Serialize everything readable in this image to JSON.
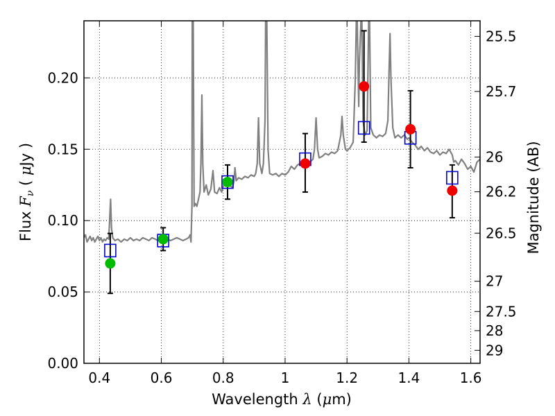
{
  "chart_data": {
    "type": "scatter",
    "xlabel": "Wavelength  λ (μm)",
    "xlabel_parts": {
      "prefix": "Wavelength  ",
      "symbol": "λ",
      "suffix": " (",
      "mu": "μ",
      "unit": "m)"
    },
    "ylabel": "Flux  Fν  ( μJy )",
    "ylabel_parts": {
      "prefix": "Flux  ",
      "symbol": "F",
      "sub": "ν",
      "open": "  ( ",
      "mu": "μ",
      "unit": "Jy )"
    },
    "y2label": "Magnitude (AB)",
    "xlim": [
      0.35,
      1.63
    ],
    "ylim": [
      0.0,
      0.24
    ],
    "grid": true,
    "x_ticks": [
      {
        "value": 0.4,
        "label": "0.4"
      },
      {
        "value": 0.6,
        "label": "0.6"
      },
      {
        "value": 0.8,
        "label": "0.8"
      },
      {
        "value": 1.0,
        "label": "1"
      },
      {
        "value": 1.2,
        "label": "1.2"
      },
      {
        "value": 1.4,
        "label": "1.4"
      },
      {
        "value": 1.6,
        "label": "1.6"
      }
    ],
    "y_ticks": [
      {
        "value": 0.0,
        "label": "0.00"
      },
      {
        "value": 0.05,
        "label": "0.05"
      },
      {
        "value": 0.1,
        "label": "0.10"
      },
      {
        "value": 0.15,
        "label": "0.15"
      },
      {
        "value": 0.2,
        "label": "0.20"
      }
    ],
    "y2_ticks": [
      {
        "label": "25.5",
        "flux": 0.2291
      },
      {
        "label": "25.7",
        "flux": 0.1905
      },
      {
        "label": "26",
        "flux": 0.1445
      },
      {
        "label": "26.2",
        "flux": 0.1202
      },
      {
        "label": "26.5",
        "flux": 0.0912
      },
      {
        "label": "27",
        "flux": 0.0575
      },
      {
        "label": "27.5",
        "flux": 0.0363
      },
      {
        "label": "28",
        "flux": 0.0229
      },
      {
        "label": "29",
        "flux": 0.0091
      }
    ],
    "colors": {
      "sed": "#808080",
      "model": "#0000cc",
      "green": "#00bb00",
      "red": "#ee0000",
      "errorbar": "#000000"
    },
    "series": [
      {
        "kind": "model_photometry",
        "marker": "open-square",
        "x": [
          0.435,
          0.606,
          0.814,
          1.065,
          1.255,
          1.405,
          1.54
        ],
        "y": [
          0.079,
          0.086,
          0.127,
          0.143,
          0.165,
          0.158,
          0.13
        ]
      },
      {
        "kind": "observed_optical",
        "marker": "filled-circle",
        "color_key": "green",
        "x": [
          0.435,
          0.606,
          0.814
        ],
        "y": [
          0.07,
          0.087,
          0.127
        ],
        "yerr_low": [
          0.049,
          0.079,
          0.115
        ],
        "yerr_high": [
          0.091,
          0.095,
          0.139
        ]
      },
      {
        "kind": "observed_nir",
        "marker": "filled-circle",
        "color_key": "red",
        "x": [
          1.065,
          1.255,
          1.405,
          1.54
        ],
        "y": [
          0.14,
          0.194,
          0.164,
          0.121
        ],
        "yerr_low": [
          0.12,
          0.155,
          0.137,
          0.102
        ],
        "yerr_high": [
          0.161,
          0.233,
          0.191,
          0.139
        ]
      }
    ],
    "sed_curve": [
      [
        0.35,
        0.088
      ],
      [
        0.355,
        0.09
      ],
      [
        0.36,
        0.085
      ],
      [
        0.365,
        0.087
      ],
      [
        0.37,
        0.089
      ],
      [
        0.375,
        0.086
      ],
      [
        0.38,
        0.088
      ],
      [
        0.385,
        0.085
      ],
      [
        0.39,
        0.087
      ],
      [
        0.395,
        0.089
      ],
      [
        0.4,
        0.086
      ],
      [
        0.405,
        0.088
      ],
      [
        0.41,
        0.085
      ],
      [
        0.415,
        0.087
      ],
      [
        0.42,
        0.086
      ],
      [
        0.425,
        0.088
      ],
      [
        0.43,
        0.087
      ],
      [
        0.433,
        0.1
      ],
      [
        0.436,
        0.115
      ],
      [
        0.439,
        0.095
      ],
      [
        0.443,
        0.088
      ],
      [
        0.45,
        0.086
      ],
      [
        0.46,
        0.087
      ],
      [
        0.47,
        0.085
      ],
      [
        0.48,
        0.087
      ],
      [
        0.49,
        0.086
      ],
      [
        0.5,
        0.088
      ],
      [
        0.51,
        0.086
      ],
      [
        0.52,
        0.087
      ],
      [
        0.53,
        0.086
      ],
      [
        0.54,
        0.088
      ],
      [
        0.55,
        0.087
      ],
      [
        0.56,
        0.086
      ],
      [
        0.57,
        0.088
      ],
      [
        0.58,
        0.087
      ],
      [
        0.59,
        0.086
      ],
      [
        0.6,
        0.087
      ],
      [
        0.61,
        0.088
      ],
      [
        0.62,
        0.087
      ],
      [
        0.63,
        0.086
      ],
      [
        0.64,
        0.087
      ],
      [
        0.65,
        0.088
      ],
      [
        0.66,
        0.087
      ],
      [
        0.67,
        0.086
      ],
      [
        0.68,
        0.087
      ],
      [
        0.688,
        0.088
      ],
      [
        0.693,
        0.09
      ],
      [
        0.696,
        0.085
      ],
      [
        0.699,
        0.11
      ],
      [
        0.7,
        0.24
      ],
      [
        0.703,
        0.24
      ],
      [
        0.706,
        0.11
      ],
      [
        0.71,
        0.112
      ],
      [
        0.715,
        0.11
      ],
      [
        0.72,
        0.115
      ],
      [
        0.725,
        0.12
      ],
      [
        0.728,
        0.14
      ],
      [
        0.731,
        0.188
      ],
      [
        0.734,
        0.14
      ],
      [
        0.738,
        0.12
      ],
      [
        0.745,
        0.125
      ],
      [
        0.752,
        0.118
      ],
      [
        0.76,
        0.122
      ],
      [
        0.767,
        0.135
      ],
      [
        0.772,
        0.12
      ],
      [
        0.78,
        0.119
      ],
      [
        0.788,
        0.123
      ],
      [
        0.795,
        0.12
      ],
      [
        0.8,
        0.124
      ],
      [
        0.81,
        0.126
      ],
      [
        0.82,
        0.125
      ],
      [
        0.83,
        0.123
      ],
      [
        0.835,
        0.128
      ],
      [
        0.838,
        0.137
      ],
      [
        0.842,
        0.128
      ],
      [
        0.85,
        0.13
      ],
      [
        0.86,
        0.129
      ],
      [
        0.87,
        0.131
      ],
      [
        0.88,
        0.13
      ],
      [
        0.89,
        0.132
      ],
      [
        0.9,
        0.131
      ],
      [
        0.905,
        0.133
      ],
      [
        0.91,
        0.14
      ],
      [
        0.914,
        0.172
      ],
      [
        0.918,
        0.14
      ],
      [
        0.925,
        0.133
      ],
      [
        0.93,
        0.14
      ],
      [
        0.935,
        0.17
      ],
      [
        0.937,
        0.24
      ],
      [
        0.941,
        0.24
      ],
      [
        0.945,
        0.15
      ],
      [
        0.95,
        0.133
      ],
      [
        0.96,
        0.132
      ],
      [
        0.97,
        0.133
      ],
      [
        0.98,
        0.131
      ],
      [
        0.99,
        0.133
      ],
      [
        1.0,
        0.132
      ],
      [
        1.01,
        0.134
      ],
      [
        1.02,
        0.138
      ],
      [
        1.03,
        0.136
      ],
      [
        1.04,
        0.139
      ],
      [
        1.05,
        0.14
      ],
      [
        1.06,
        0.141
      ],
      [
        1.07,
        0.142
      ],
      [
        1.08,
        0.141
      ],
      [
        1.09,
        0.143
      ],
      [
        1.095,
        0.15
      ],
      [
        1.1,
        0.172
      ],
      [
        1.105,
        0.15
      ],
      [
        1.11,
        0.144
      ],
      [
        1.12,
        0.145
      ],
      [
        1.13,
        0.147
      ],
      [
        1.14,
        0.146
      ],
      [
        1.15,
        0.148
      ],
      [
        1.16,
        0.147
      ],
      [
        1.17,
        0.149
      ],
      [
        1.18,
        0.16
      ],
      [
        1.184,
        0.173
      ],
      [
        1.188,
        0.16
      ],
      [
        1.195,
        0.15
      ],
      [
        1.2,
        0.149
      ],
      [
        1.21,
        0.151
      ],
      [
        1.22,
        0.155
      ],
      [
        1.227,
        0.2
      ],
      [
        1.23,
        0.24
      ],
      [
        1.233,
        0.24
      ],
      [
        1.238,
        0.18
      ],
      [
        1.24,
        0.21
      ],
      [
        1.245,
        0.24
      ],
      [
        1.248,
        0.24
      ],
      [
        1.252,
        0.17
      ],
      [
        1.258,
        0.16
      ],
      [
        1.265,
        0.163
      ],
      [
        1.27,
        0.24
      ],
      [
        1.273,
        0.24
      ],
      [
        1.277,
        0.165
      ],
      [
        1.285,
        0.16
      ],
      [
        1.295,
        0.158
      ],
      [
        1.305,
        0.16
      ],
      [
        1.315,
        0.159
      ],
      [
        1.325,
        0.161
      ],
      [
        1.332,
        0.17
      ],
      [
        1.336,
        0.205
      ],
      [
        1.339,
        0.231
      ],
      [
        1.342,
        0.2
      ],
      [
        1.348,
        0.165
      ],
      [
        1.355,
        0.158
      ],
      [
        1.365,
        0.16
      ],
      [
        1.375,
        0.158
      ],
      [
        1.385,
        0.16
      ],
      [
        1.395,
        0.157
      ],
      [
        1.4,
        0.158
      ],
      [
        1.41,
        0.155
      ],
      [
        1.42,
        0.153
      ],
      [
        1.43,
        0.15
      ],
      [
        1.44,
        0.152
      ],
      [
        1.45,
        0.149
      ],
      [
        1.46,
        0.151
      ],
      [
        1.47,
        0.148
      ],
      [
        1.48,
        0.147
      ],
      [
        1.49,
        0.149
      ],
      [
        1.5,
        0.146
      ],
      [
        1.51,
        0.148
      ],
      [
        1.52,
        0.147
      ],
      [
        1.53,
        0.15
      ],
      [
        1.54,
        0.146
      ],
      [
        1.545,
        0.141
      ],
      [
        1.55,
        0.142
      ],
      [
        1.56,
        0.139
      ],
      [
        1.57,
        0.143
      ],
      [
        1.58,
        0.14
      ],
      [
        1.59,
        0.136
      ],
      [
        1.6,
        0.138
      ],
      [
        1.61,
        0.134
      ],
      [
        1.62,
        0.141
      ],
      [
        1.63,
        0.143
      ]
    ]
  }
}
